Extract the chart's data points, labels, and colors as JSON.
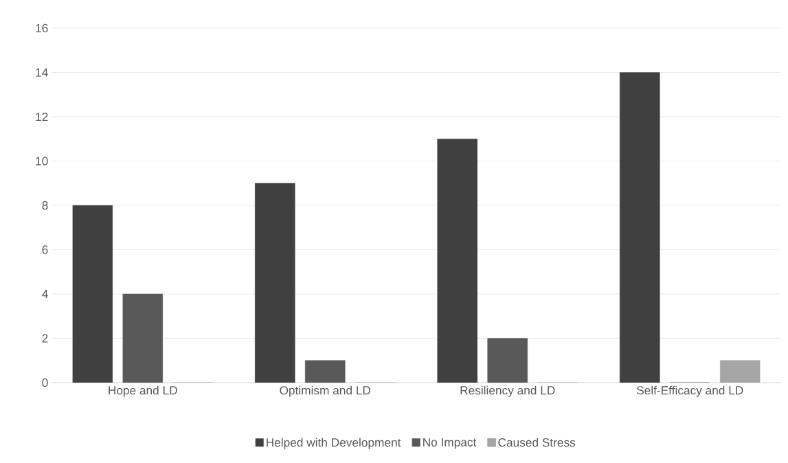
{
  "chart_data": {
    "type": "bar",
    "categories": [
      "Hope and LD",
      "Optimism and LD",
      "Resiliency and LD",
      "Self-Efficacy and LD"
    ],
    "series": [
      {
        "name": "Helped with Development",
        "color": "#404040",
        "values": [
          8,
          9,
          11,
          14
        ]
      },
      {
        "name": "No Impact",
        "color": "#595959",
        "values": [
          4,
          1,
          2,
          0
        ]
      },
      {
        "name": "Caused Stress",
        "color": "#a6a6a6",
        "values": [
          0,
          0,
          0,
          1
        ]
      }
    ],
    "ylim": [
      0,
      16
    ],
    "yticks": [
      0,
      2,
      4,
      6,
      8,
      10,
      12,
      14,
      16
    ],
    "grid": "y",
    "legend": "bottom"
  }
}
